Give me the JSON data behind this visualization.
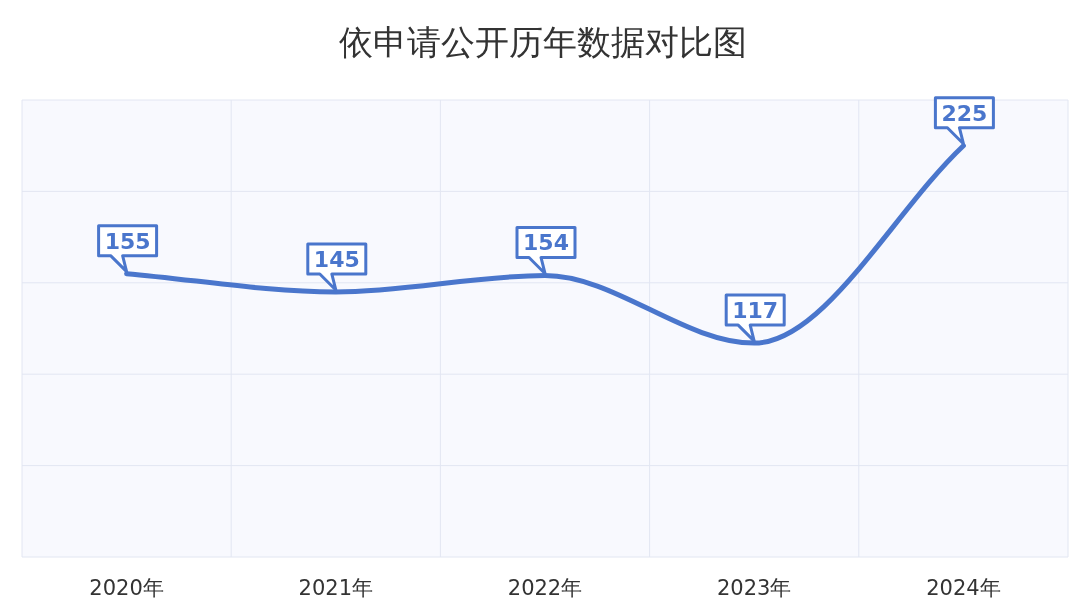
{
  "chart_data": {
    "type": "line",
    "title": "依申请公开历年数据对比图",
    "categories": [
      "2020年",
      "2021年",
      "2022年",
      "2023年",
      "2024年"
    ],
    "series": [
      {
        "color": "#4a76cc",
        "values": [
          155,
          145,
          154,
          117,
          225
        ]
      }
    ],
    "ylim": [
      0,
      250
    ],
    "yticks": [
      {
        "value": 0,
        "label": null
      },
      {
        "value": 50,
        "label": null
      },
      {
        "value": 100,
        "label": null
      },
      {
        "value": 150,
        "label": null
      },
      {
        "value": 200,
        "label": null
      },
      {
        "value": 250,
        "label": null
      }
    ],
    "grid": true,
    "data_labels": true,
    "tick_labels": "x",
    "marker": "none",
    "line_style": "solid"
  }
}
